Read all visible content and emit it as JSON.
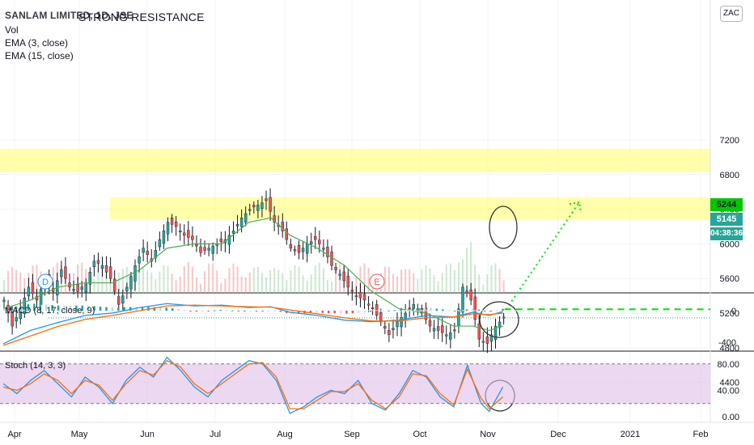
{
  "chart_data": {
    "type": "candlestick",
    "symbol_title": "SANLAM LIMITED, 1D, JSE",
    "annotation": "STRONG RESISTANCE",
    "currency": "ZAC",
    "legend": [
      "Vol",
      "EMA (3, close)",
      "EMA (15, close)"
    ],
    "x_ticks": [
      "Apr",
      "May",
      "Jun",
      "Jul",
      "Aug",
      "Sep",
      "Oct",
      "Nov",
      "Dec",
      "2021",
      "Feb"
    ],
    "y_ticks": [
      4400,
      4800,
      5200,
      5600,
      6000,
      6400,
      6800,
      7200
    ],
    "ylim": [
      4300,
      7350
    ],
    "resistance_zones": [
      [
        6830,
        7100
      ],
      [
        6280,
        6540
      ]
    ],
    "target_line_level": 5244,
    "last_price": 5145,
    "countdown": "04:38:36",
    "price_series": [
      [
        0,
        5350
      ],
      [
        3,
        5050
      ],
      [
        6,
        5250
      ],
      [
        9,
        5500
      ],
      [
        12,
        5350
      ],
      [
        15,
        5600
      ],
      [
        18,
        5450
      ],
      [
        21,
        5700
      ],
      [
        24,
        5500
      ],
      [
        27,
        5450
      ],
      [
        30,
        5550
      ],
      [
        33,
        5800
      ],
      [
        36,
        5750
      ],
      [
        39,
        5600
      ],
      [
        42,
        5300
      ],
      [
        45,
        5500
      ],
      [
        48,
        5750
      ],
      [
        51,
        5950
      ],
      [
        54,
        5800
      ],
      [
        57,
        6050
      ],
      [
        60,
        6250
      ],
      [
        63,
        6200
      ],
      [
        66,
        6100
      ],
      [
        69,
        6050
      ],
      [
        72,
        5900
      ],
      [
        75,
        5950
      ],
      [
        78,
        6000
      ],
      [
        81,
        6050
      ],
      [
        84,
        6150
      ],
      [
        87,
        6300
      ],
      [
        90,
        6400
      ],
      [
        93,
        6450
      ],
      [
        96,
        6500
      ],
      [
        99,
        6250
      ],
      [
        102,
        6150
      ],
      [
        105,
        5950
      ],
      [
        108,
        5900
      ],
      [
        111,
        6000
      ],
      [
        114,
        6050
      ],
      [
        117,
        5950
      ],
      [
        120,
        5750
      ],
      [
        123,
        5650
      ],
      [
        126,
        5500
      ],
      [
        129,
        5400
      ],
      [
        132,
        5350
      ],
      [
        135,
        5250
      ],
      [
        138,
        5100
      ],
      [
        141,
        4950
      ],
      [
        144,
        5100
      ],
      [
        147,
        5200
      ],
      [
        150,
        5300
      ],
      [
        153,
        5200
      ],
      [
        156,
        5050
      ],
      [
        159,
        5000
      ],
      [
        162,
        4950
      ],
      [
        165,
        5000
      ],
      [
        168,
        5500
      ],
      [
        171,
        5350
      ],
      [
        174,
        4900
      ],
      [
        177,
        4850
      ],
      [
        180,
        5050
      ],
      [
        183,
        5145
      ]
    ],
    "ema15_series": [
      [
        0,
        5250
      ],
      [
        10,
        5350
      ],
      [
        20,
        5500
      ],
      [
        30,
        5550
      ],
      [
        40,
        5550
      ],
      [
        50,
        5700
      ],
      [
        60,
        5950
      ],
      [
        70,
        6000
      ],
      [
        80,
        6000
      ],
      [
        90,
        6250
      ],
      [
        98,
        6300
      ],
      [
        105,
        6100
      ],
      [
        115,
        5950
      ],
      [
        125,
        5750
      ],
      [
        135,
        5450
      ],
      [
        145,
        5250
      ],
      [
        155,
        5200
      ],
      [
        165,
        5050
      ],
      [
        172,
        5050
      ],
      [
        178,
        5000
      ],
      [
        183,
        5050
      ]
    ],
    "macd": {
      "label": "MACD (8, 17, close, 9)",
      "y_ticks": [
        0,
        -400
      ],
      "ylim": [
        -480,
        200
      ],
      "macd_line": [
        [
          0,
          -420
        ],
        [
          10,
          -250
        ],
        [
          20,
          -150
        ],
        [
          30,
          -60
        ],
        [
          40,
          -30
        ],
        [
          50,
          40
        ],
        [
          60,
          90
        ],
        [
          70,
          60
        ],
        [
          80,
          70
        ],
        [
          90,
          40
        ],
        [
          98,
          50
        ],
        [
          105,
          -20
        ],
        [
          115,
          -60
        ],
        [
          125,
          -120
        ],
        [
          135,
          -140
        ],
        [
          145,
          -120
        ],
        [
          155,
          -60
        ],
        [
          165,
          -80
        ],
        [
          172,
          -20
        ],
        [
          178,
          -60
        ],
        [
          183,
          -10
        ]
      ],
      "signal_line": [
        [
          0,
          -440
        ],
        [
          10,
          -320
        ],
        [
          20,
          -200
        ],
        [
          30,
          -110
        ],
        [
          40,
          -60
        ],
        [
          50,
          0
        ],
        [
          60,
          60
        ],
        [
          70,
          70
        ],
        [
          80,
          60
        ],
        [
          90,
          50
        ],
        [
          98,
          45
        ],
        [
          105,
          10
        ],
        [
          115,
          -40
        ],
        [
          125,
          -90
        ],
        [
          135,
          -130
        ],
        [
          145,
          -130
        ],
        [
          155,
          -90
        ],
        [
          165,
          -80
        ],
        [
          172,
          -40
        ],
        [
          178,
          -50
        ],
        [
          183,
          -30
        ]
      ]
    },
    "stoch": {
      "label": "Stoch (14, 3, 3)",
      "y_ticks": [
        "80.00",
        "40.00",
        "0.00"
      ],
      "ylim": [
        -8,
        102
      ],
      "upper_band": 80,
      "lower_band": 20,
      "k_line": [
        [
          0,
          50
        ],
        [
          5,
          35
        ],
        [
          10,
          55
        ],
        [
          15,
          70
        ],
        [
          20,
          50
        ],
        [
          25,
          30
        ],
        [
          30,
          60
        ],
        [
          35,
          45
        ],
        [
          40,
          20
        ],
        [
          45,
          55
        ],
        [
          50,
          75
        ],
        [
          55,
          60
        ],
        [
          60,
          90
        ],
        [
          65,
          70
        ],
        [
          70,
          45
        ],
        [
          75,
          30
        ],
        [
          80,
          55
        ],
        [
          85,
          70
        ],
        [
          90,
          85
        ],
        [
          95,
          80
        ],
        [
          100,
          55
        ],
        [
          105,
          5
        ],
        [
          110,
          15
        ],
        [
          115,
          30
        ],
        [
          120,
          40
        ],
        [
          125,
          35
        ],
        [
          130,
          55
        ],
        [
          135,
          20
        ],
        [
          140,
          10
        ],
        [
          145,
          35
        ],
        [
          150,
          70
        ],
        [
          155,
          60
        ],
        [
          160,
          30
        ],
        [
          165,
          15
        ],
        [
          170,
          78
        ],
        [
          175,
          20
        ],
        [
          178,
          8
        ],
        [
          183,
          45
        ]
      ],
      "d_line": [
        [
          0,
          45
        ],
        [
          5,
          40
        ],
        [
          10,
          50
        ],
        [
          15,
          65
        ],
        [
          20,
          55
        ],
        [
          25,
          35
        ],
        [
          30,
          55
        ],
        [
          35,
          48
        ],
        [
          40,
          25
        ],
        [
          45,
          50
        ],
        [
          50,
          70
        ],
        [
          55,
          63
        ],
        [
          60,
          85
        ],
        [
          65,
          75
        ],
        [
          70,
          50
        ],
        [
          75,
          35
        ],
        [
          80,
          50
        ],
        [
          85,
          65
        ],
        [
          90,
          80
        ],
        [
          95,
          82
        ],
        [
          100,
          60
        ],
        [
          105,
          12
        ],
        [
          110,
          12
        ],
        [
          115,
          25
        ],
        [
          120,
          38
        ],
        [
          125,
          38
        ],
        [
          130,
          50
        ],
        [
          135,
          25
        ],
        [
          140,
          12
        ],
        [
          145,
          30
        ],
        [
          150,
          65
        ],
        [
          155,
          62
        ],
        [
          160,
          35
        ],
        [
          165,
          18
        ],
        [
          170,
          72
        ],
        [
          175,
          28
        ],
        [
          178,
          12
        ],
        [
          183,
          30
        ]
      ]
    }
  }
}
